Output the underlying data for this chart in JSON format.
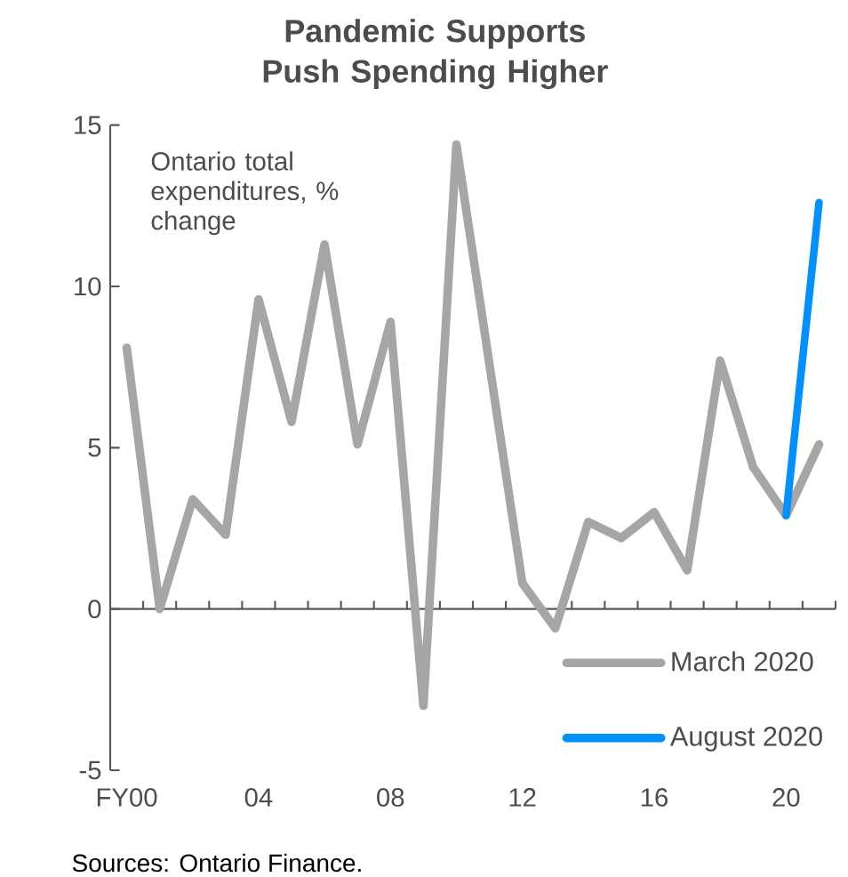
{
  "chart_data": {
    "type": "line",
    "title": "Pandemic Supports Push Spending Higher",
    "categories": [
      "FY00",
      null,
      null,
      null,
      "04",
      null,
      null,
      null,
      "08",
      null,
      null,
      null,
      "12",
      null,
      null,
      null,
      "16",
      null,
      null,
      null,
      "20",
      null
    ],
    "series": [
      {
        "name": "March 2020",
        "color": "#a6a6a6",
        "values": [
          8.1,
          0,
          3.4,
          2.3,
          9.6,
          5.8,
          11.3,
          5.1,
          8.9,
          -3.0,
          14.4,
          7.6,
          0.8,
          -0.6,
          2.7,
          2.2,
          3.0,
          1.2,
          7.7,
          4.4,
          2.9,
          5.1
        ]
      },
      {
        "name": "August 2020",
        "color": "#0091ff",
        "values": [
          null,
          null,
          null,
          null,
          null,
          null,
          null,
          null,
          null,
          null,
          null,
          null,
          null,
          null,
          null,
          null,
          null,
          null,
          null,
          null,
          2.9,
          12.6
        ]
      }
    ],
    "ylim": [
      -5,
      15
    ],
    "yticks": [
      -5,
      0,
      5,
      10,
      15
    ],
    "legend": "bottom right",
    "annotations": [
      "Ontario total expenditures, % change",
      "Sources: Ontario Finance."
    ]
  }
}
